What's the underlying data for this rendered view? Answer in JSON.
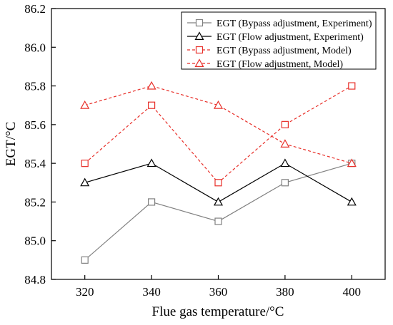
{
  "chart_data": {
    "type": "line",
    "title": "",
    "xlabel": "Flue gas temperature/°C",
    "ylabel": "EGT/°C",
    "x": [
      320,
      340,
      360,
      380,
      400
    ],
    "xlim": [
      310,
      410
    ],
    "ylim": [
      84.8,
      86.2
    ],
    "xticks": [
      "320",
      "340",
      "360",
      "380",
      "400"
    ],
    "yticks": [
      "84.8",
      "85.0",
      "85.2",
      "85.4",
      "85.6",
      "85.8",
      "86.0",
      "86.2"
    ],
    "grid": false,
    "legend_position": "top-right",
    "series": [
      {
        "name": "EGT (Bypass adjustment, Experiment)",
        "values": [
          84.9,
          85.2,
          85.1,
          85.3,
          85.4
        ],
        "color": "#808080",
        "line_style": "solid",
        "marker": "square"
      },
      {
        "name": "EGT (Flow adjustment, Experiment)",
        "values": [
          85.3,
          85.4,
          85.2,
          85.4,
          85.2
        ],
        "color": "#000000",
        "line_style": "solid",
        "marker": "triangle"
      },
      {
        "name": "EGT (Bypass adjustment, Model)",
        "values": [
          85.4,
          85.7,
          85.3,
          85.6,
          85.8
        ],
        "color": "#e8302a",
        "line_style": "dashed",
        "marker": "square"
      },
      {
        "name": "EGT (Flow adjustment, Model)",
        "values": [
          85.7,
          85.8,
          85.7,
          85.5,
          85.4
        ],
        "color": "#e8302a",
        "line_style": "dashed",
        "marker": "triangle"
      }
    ]
  }
}
